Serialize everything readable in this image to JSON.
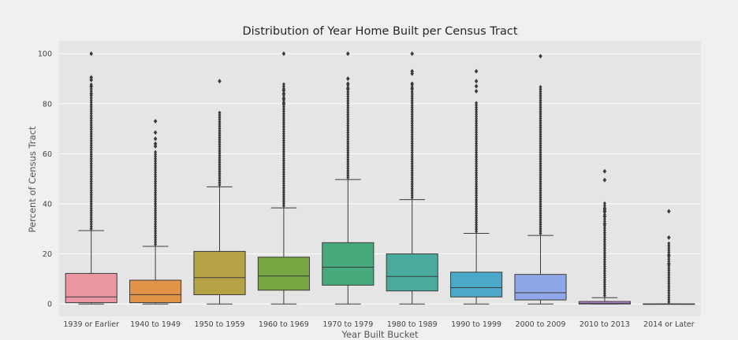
{
  "chart_data": {
    "type": "box",
    "title": "Distribution of Year Home Built per Census Tract",
    "xlabel": "Year Built Bucket",
    "ylabel": "Percent of Census Tract",
    "ylim": [
      -5,
      105
    ],
    "yticks": [
      0,
      20,
      40,
      60,
      80,
      100
    ],
    "grid": true,
    "categories": [
      "1939 or Earlier",
      "1940 to 1949",
      "1950 to 1959",
      "1960 to 1969",
      "1970 to 1979",
      "1980 to 1989",
      "1990 to 1999",
      "2000 to 2009",
      "2010 to 2013",
      "2014 or Later"
    ],
    "colors": [
      "#ea96a3",
      "#e39348",
      "#b4a244",
      "#78a642",
      "#47aa7d",
      "#49ab9e",
      "#4ca8c8",
      "#8fa7e8",
      "#c792e8",
      "#e98fda"
    ],
    "boxes": [
      {
        "min": 0,
        "q1": 0.5,
        "median": 2.8,
        "q3": 12.2,
        "max": 29.3,
        "outlier_max": 100
      },
      {
        "min": 0,
        "q1": 0.5,
        "median": 3.7,
        "q3": 9.5,
        "max": 23.0,
        "outlier_max": 73
      },
      {
        "min": 0,
        "q1": 3.7,
        "median": 10.5,
        "q3": 21.0,
        "max": 46.8,
        "outlier_max": 89
      },
      {
        "min": 0,
        "q1": 5.5,
        "median": 11.2,
        "q3": 18.7,
        "max": 38.4,
        "outlier_max": 100
      },
      {
        "min": 0,
        "q1": 7.5,
        "median": 14.7,
        "q3": 24.5,
        "max": 49.7,
        "outlier_max": 100
      },
      {
        "min": 0,
        "q1": 5.2,
        "median": 11.0,
        "q3": 20.0,
        "max": 41.7,
        "outlier_max": 100
      },
      {
        "min": 0,
        "q1": 2.8,
        "median": 6.5,
        "q3": 12.7,
        "max": 28.2,
        "outlier_max": 93
      },
      {
        "min": 0,
        "q1": 1.6,
        "median": 4.5,
        "q3": 11.8,
        "max": 27.4,
        "outlier_max": 99
      },
      {
        "min": 0,
        "q1": 0,
        "median": 0.3,
        "q3": 1.0,
        "max": 2.5,
        "outlier_max": 53
      },
      {
        "min": 0,
        "q1": 0,
        "median": 0,
        "q3": 0,
        "max": 0,
        "outlier_max": 37
      }
    ],
    "sparse_outliers": [
      [
        90.5,
        89.5,
        87.0,
        84.0
      ],
      [
        68.5,
        66.0,
        64.0,
        63.0
      ],
      [],
      [
        85.5,
        84.0,
        82.0,
        80.0
      ],
      [
        90.0,
        88.0,
        86.0
      ],
      [
        93.0,
        92.0,
        88.0,
        86.0
      ],
      [
        89.0,
        87.0,
        85.0
      ],
      [],
      [
        49.5,
        38.0,
        37.0,
        35.0,
        32.0
      ],
      [
        26.5,
        19.5,
        16.0
      ]
    ]
  }
}
